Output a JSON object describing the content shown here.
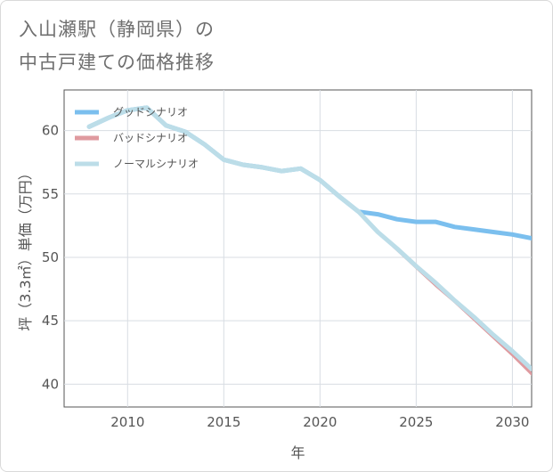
{
  "title_lines": [
    "入山瀬駅（静岡県）の",
    "中古戸建ての価格推移"
  ],
  "chart_data": {
    "type": "line",
    "xlabel": "年",
    "ylabel": "坪（3.3㎡）単価（万円）",
    "xlim": [
      2006.7,
      2031
    ],
    "ylim": [
      38.2,
      63.2
    ],
    "xticks": [
      2010,
      2015,
      2020,
      2025,
      2030
    ],
    "yticks": [
      40,
      45,
      50,
      55,
      60
    ],
    "grid": true,
    "legend_position": "top-left",
    "series": [
      {
        "name": "グッドシナリオ",
        "color": "#7bbfee",
        "x": [
          2008,
          2009,
          2010,
          2011,
          2012,
          2013,
          2014,
          2015,
          2016,
          2017,
          2018,
          2019,
          2020,
          2021,
          2022,
          2023,
          2024,
          2025,
          2026,
          2027,
          2028,
          2029,
          2030,
          2031
        ],
        "values": [
          60.3,
          61.0,
          61.6,
          61.8,
          60.4,
          59.9,
          58.9,
          57.7,
          57.3,
          57.1,
          56.8,
          57.0,
          56.1,
          54.8,
          53.6,
          53.4,
          53.0,
          52.8,
          52.8,
          52.4,
          52.2,
          52.0,
          51.8,
          51.5
        ]
      },
      {
        "name": "バッドシナリオ",
        "color": "#df9a9f",
        "x": [
          2008,
          2009,
          2010,
          2011,
          2012,
          2013,
          2014,
          2015,
          2016,
          2017,
          2018,
          2019,
          2020,
          2021,
          2022,
          2023,
          2024,
          2025,
          2026,
          2027,
          2028,
          2029,
          2030,
          2031
        ],
        "values": [
          60.3,
          61.0,
          61.6,
          61.8,
          60.4,
          59.9,
          58.9,
          57.7,
          57.3,
          57.1,
          56.8,
          57.0,
          56.1,
          54.8,
          53.6,
          52.0,
          50.6,
          49.2,
          47.8,
          46.5,
          45.1,
          43.7,
          42.3,
          40.8
        ]
      },
      {
        "name": "ノーマルシナリオ",
        "color": "#bcdde8",
        "x": [
          2008,
          2009,
          2010,
          2011,
          2012,
          2013,
          2014,
          2015,
          2016,
          2017,
          2018,
          2019,
          2020,
          2021,
          2022,
          2023,
          2024,
          2025,
          2026,
          2027,
          2028,
          2029,
          2030,
          2031
        ],
        "values": [
          60.3,
          61.0,
          61.6,
          61.8,
          60.4,
          59.9,
          58.9,
          57.7,
          57.3,
          57.1,
          56.8,
          57.0,
          56.1,
          54.8,
          53.6,
          52.0,
          50.7,
          49.3,
          48.0,
          46.6,
          45.3,
          43.9,
          42.6,
          41.2
        ]
      }
    ]
  }
}
